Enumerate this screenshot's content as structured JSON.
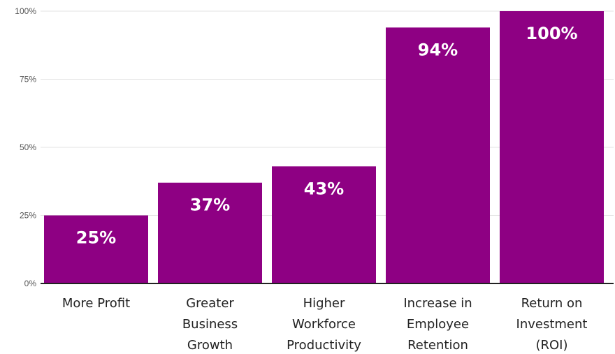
{
  "chart_data": {
    "type": "bar",
    "categories": [
      [
        "More Profit"
      ],
      [
        "Greater",
        "Business",
        "Growth"
      ],
      [
        "Higher",
        "Workforce",
        "Productivity"
      ],
      [
        "Increase in",
        "Employee",
        "Retention"
      ],
      [
        "Return on",
        "Investment",
        "(ROI)"
      ]
    ],
    "values": [
      25,
      37,
      43,
      94,
      100
    ],
    "data_labels": [
      "25%",
      "37%",
      "43%",
      "94%",
      "100%"
    ],
    "yticks": [
      0,
      25,
      50,
      75,
      100
    ],
    "ytick_labels": [
      "0%",
      "25%",
      "50%",
      "75%",
      "100%"
    ],
    "ylim": [
      0,
      100
    ],
    "grid": true,
    "bar_color": "#8e0083",
    "title": "",
    "xlabel": "",
    "ylabel": ""
  }
}
